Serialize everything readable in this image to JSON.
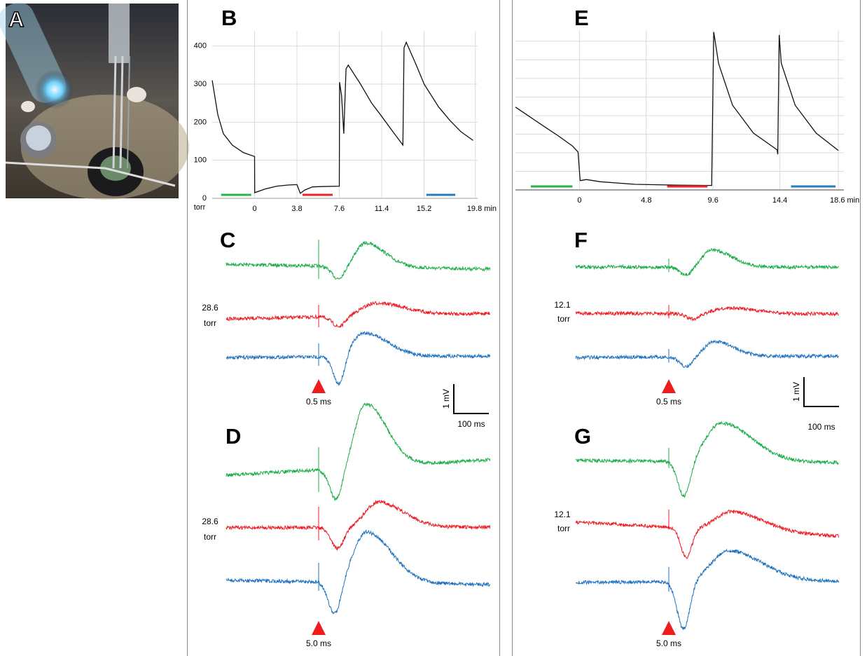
{
  "panels": [
    "A",
    "B",
    "C",
    "D",
    "E",
    "F",
    "G"
  ],
  "chart_data": [
    {
      "type": "line",
      "y_unit": "torr",
      "color": "#111111",
      "x": [
        -3.8,
        -3.3,
        -2.8,
        -2.0,
        -1.0,
        0,
        0.01,
        1,
        2,
        3,
        3.8,
        4.1,
        4.5,
        5.2,
        6,
        7.6,
        7.62,
        7.8,
        8.0,
        8.2,
        8.4,
        9.5,
        10.5,
        11.4,
        12.4,
        13.3,
        13.4,
        13.6,
        14.5,
        15.2,
        16.5,
        17.5,
        18.5,
        19.6
      ],
      "values": [
        310,
        220,
        170,
        140,
        120,
        110,
        15,
        25,
        32,
        35,
        36,
        13,
        22,
        30,
        31,
        32,
        305,
        270,
        170,
        340,
        350,
        300,
        250,
        215,
        175,
        140,
        395,
        410,
        350,
        300,
        240,
        205,
        175,
        152
      ],
      "xlim": [
        -3.8,
        20.0
      ],
      "ylim": [
        0,
        440
      ],
      "xticks": [
        0,
        3.8,
        7.6,
        11.4,
        15.2,
        {
          "value": 19.8,
          "label": "19.8 min"
        }
      ],
      "yticks": [
        0,
        100,
        200,
        300,
        400
      ],
      "grid": true,
      "periods": [
        {
          "color": "#2ab24b",
          "x": [
            -3.0,
            -0.3
          ]
        },
        {
          "color": "#e8262b",
          "x": [
            4.3,
            7.0
          ]
        },
        {
          "color": "#2b7bb9",
          "x": [
            15.4,
            18.0
          ]
        }
      ]
    },
    {
      "type": "line",
      "color": "#111111",
      "x": [
        -4.6,
        -3.5,
        -2.5,
        -1.5,
        -0.5,
        -0.1,
        0.05,
        0.5,
        1.5,
        4,
        7,
        9.5,
        9.6,
        9.65,
        10.0,
        11,
        12.5,
        14.2,
        14.25,
        14.35,
        14.5,
        15.5,
        17,
        18.6
      ],
      "values": [
        223,
        195,
        170,
        145,
        118,
        102,
        25,
        28,
        22,
        15,
        13,
        12,
        300,
        425,
        340,
        228,
        153,
        108,
        96,
        417,
        341,
        228,
        153,
        106
      ],
      "xlim": [
        -4.6,
        19.0
      ],
      "ylim": [
        0,
        430
      ],
      "xticks": [
        0,
        4.8,
        9.6,
        14.4,
        {
          "value": 18.6,
          "label": "18.6 min"
        }
      ],
      "ygrid": [
        50,
        100,
        150,
        200,
        250,
        300,
        350,
        400
      ],
      "grid": true,
      "periods": [
        {
          "color": "#2ab24b",
          "x": [
            -3.5,
            -0.5
          ]
        },
        {
          "color": "#e8262b",
          "x": [
            6.3,
            9.2
          ]
        },
        {
          "color": "#2b7bb9",
          "x": [
            15.2,
            18.4
          ]
        }
      ]
    }
  ],
  "traces": {
    "c": {
      "pressure": "28.6",
      "unit": "torr",
      "stimulus": "0.5 ms"
    },
    "d": {
      "pressure": "28.6",
      "unit": "torr",
      "stimulus": "5.0 ms"
    },
    "f": {
      "pressure": "12.1",
      "unit": "torr",
      "stimulus": "0.5 ms"
    },
    "g": {
      "pressure": "12.1",
      "unit": "torr",
      "stimulus": "5.0 ms"
    }
  },
  "scale_bars": [
    {
      "voltage": "1 mV",
      "time": "100 ms"
    },
    {
      "voltage": "1 mV",
      "time": "100 ms"
    }
  ]
}
